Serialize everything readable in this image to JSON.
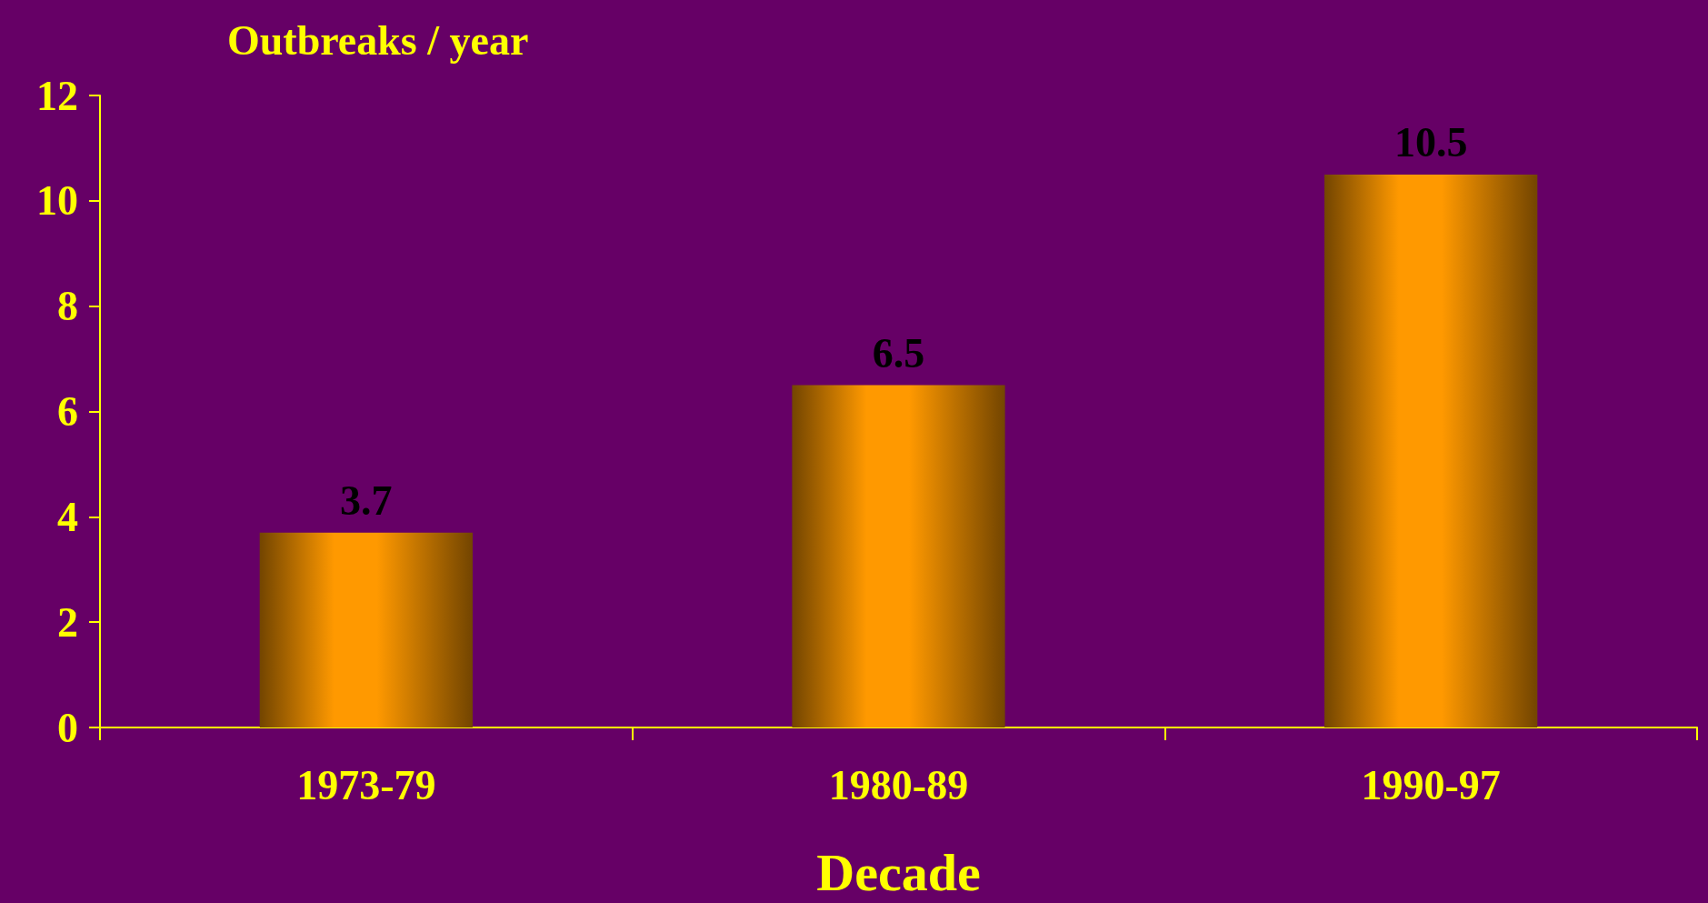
{
  "chart_data": {
    "type": "bar",
    "ylabel": "Outbreaks / year",
    "xlabel": "Decade",
    "categories": [
      "1973-79",
      "1980-89",
      "1990-97"
    ],
    "values": [
      3.7,
      6.5,
      10.5
    ],
    "color": "#ff9900",
    "ylim": [
      0,
      12
    ],
    "yticks": [
      0,
      2,
      4,
      6,
      8,
      10,
      12
    ],
    "grid": false,
    "data_labels": true
  }
}
